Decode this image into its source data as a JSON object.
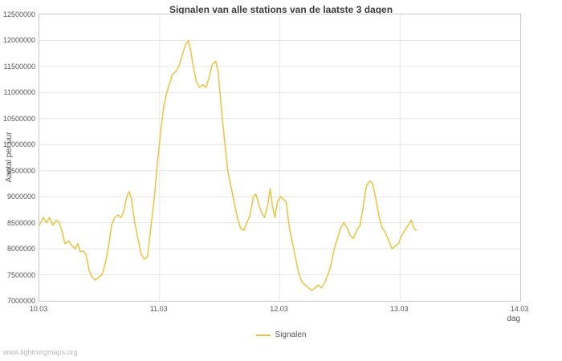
{
  "footer": "www.lightningmaps.org",
  "colors": {
    "line": "#edc240",
    "grid": "#e6e6e6",
    "border": "#c8c8c8",
    "tick_text": "#545454",
    "title_text": "#3c3c3c",
    "watermark": "#b9b9b9"
  },
  "chart_data": {
    "type": "line",
    "title": "Signalen van alle stations van de laatste 3 dagen",
    "xlabel": "dag",
    "ylabel": "Aantal per uur",
    "legend_label": "Signalen",
    "legend_position": "bottom-center",
    "grid": true,
    "xlim": [
      10.03,
      14.03
    ],
    "ylim": [
      7000000,
      12500000
    ],
    "x_ticks": [
      {
        "label": "10.03",
        "value": 10.03
      },
      {
        "label": "11.03",
        "value": 11.03
      },
      {
        "label": "12.03",
        "value": 12.03
      },
      {
        "label": "13.03",
        "value": 13.03
      },
      {
        "label": "14.03",
        "value": 14.03
      }
    ],
    "y_ticks": [
      7000000,
      7500000,
      8000000,
      8500000,
      9000000,
      9500000,
      10000000,
      10500000,
      11000000,
      11500000,
      12000000,
      12500000
    ],
    "series": [
      {
        "name": "Signalen",
        "color": "#edc240",
        "points": [
          [
            10.03,
            8450000
          ],
          [
            10.063,
            8600000
          ],
          [
            10.09,
            8500000
          ],
          [
            10.117,
            8600000
          ],
          [
            10.143,
            8450000
          ],
          [
            10.17,
            8550000
          ],
          [
            10.197,
            8500000
          ],
          [
            10.223,
            8300000
          ],
          [
            10.243,
            8100000
          ],
          [
            10.277,
            8150000
          ],
          [
            10.303,
            8050000
          ],
          [
            10.33,
            8000000
          ],
          [
            10.35,
            8100000
          ],
          [
            10.37,
            7950000
          ],
          [
            10.397,
            7950000
          ],
          [
            10.417,
            7900000
          ],
          [
            10.443,
            7600000
          ],
          [
            10.47,
            7450000
          ],
          [
            10.497,
            7400000
          ],
          [
            10.523,
            7450000
          ],
          [
            10.55,
            7500000
          ],
          [
            10.577,
            7700000
          ],
          [
            10.603,
            8000000
          ],
          [
            10.63,
            8450000
          ],
          [
            10.657,
            8600000
          ],
          [
            10.683,
            8650000
          ],
          [
            10.71,
            8600000
          ],
          [
            10.73,
            8700000
          ],
          [
            10.757,
            9000000
          ],
          [
            10.777,
            9100000
          ],
          [
            10.797,
            8950000
          ],
          [
            10.823,
            8500000
          ],
          [
            10.85,
            8200000
          ],
          [
            10.877,
            7900000
          ],
          [
            10.903,
            7800000
          ],
          [
            10.93,
            7850000
          ],
          [
            10.957,
            8400000
          ],
          [
            10.983,
            8900000
          ],
          [
            11.01,
            9600000
          ],
          [
            11.037,
            10200000
          ],
          [
            11.063,
            10700000
          ],
          [
            11.09,
            11000000
          ],
          [
            11.117,
            11200000
          ],
          [
            11.137,
            11350000
          ],
          [
            11.163,
            11400000
          ],
          [
            11.19,
            11500000
          ],
          [
            11.217,
            11700000
          ],
          [
            11.243,
            11900000
          ],
          [
            11.27,
            12000000
          ],
          [
            11.29,
            11800000
          ],
          [
            11.31,
            11500000
          ],
          [
            11.337,
            11200000
          ],
          [
            11.363,
            11100000
          ],
          [
            11.39,
            11150000
          ],
          [
            11.417,
            11100000
          ],
          [
            11.443,
            11300000
          ],
          [
            11.47,
            11550000
          ],
          [
            11.497,
            11600000
          ],
          [
            11.517,
            11400000
          ],
          [
            11.543,
            10700000
          ],
          [
            11.57,
            10100000
          ],
          [
            11.597,
            9500000
          ],
          [
            11.623,
            9200000
          ],
          [
            11.65,
            8900000
          ],
          [
            11.677,
            8600000
          ],
          [
            11.703,
            8400000
          ],
          [
            11.73,
            8350000
          ],
          [
            11.757,
            8500000
          ],
          [
            11.783,
            8650000
          ],
          [
            11.81,
            9000000
          ],
          [
            11.83,
            9050000
          ],
          [
            11.85,
            8900000
          ],
          [
            11.877,
            8700000
          ],
          [
            11.903,
            8600000
          ],
          [
            11.93,
            8850000
          ],
          [
            11.95,
            9150000
          ],
          [
            11.97,
            8800000
          ],
          [
            11.99,
            8600000
          ],
          [
            12.01,
            8900000
          ],
          [
            12.037,
            9000000
          ],
          [
            12.063,
            8950000
          ],
          [
            12.083,
            8900000
          ],
          [
            12.11,
            8400000
          ],
          [
            12.137,
            8100000
          ],
          [
            12.163,
            7800000
          ],
          [
            12.19,
            7500000
          ],
          [
            12.217,
            7350000
          ],
          [
            12.243,
            7300000
          ],
          [
            12.27,
            7250000
          ],
          [
            12.297,
            7200000
          ],
          [
            12.323,
            7250000
          ],
          [
            12.35,
            7300000
          ],
          [
            12.377,
            7250000
          ],
          [
            12.403,
            7350000
          ],
          [
            12.43,
            7500000
          ],
          [
            12.457,
            7700000
          ],
          [
            12.483,
            8000000
          ],
          [
            12.51,
            8200000
          ],
          [
            12.537,
            8400000
          ],
          [
            12.563,
            8500000
          ],
          [
            12.59,
            8400000
          ],
          [
            12.617,
            8250000
          ],
          [
            12.643,
            8200000
          ],
          [
            12.67,
            8350000
          ],
          [
            12.697,
            8450000
          ],
          [
            12.723,
            8800000
          ],
          [
            12.75,
            9200000
          ],
          [
            12.777,
            9300000
          ],
          [
            12.803,
            9250000
          ],
          [
            12.83,
            8950000
          ],
          [
            12.857,
            8600000
          ],
          [
            12.883,
            8400000
          ],
          [
            12.91,
            8300000
          ],
          [
            12.937,
            8150000
          ],
          [
            12.963,
            8000000
          ],
          [
            12.99,
            8050000
          ],
          [
            13.017,
            8100000
          ],
          [
            13.043,
            8250000
          ],
          [
            13.07,
            8350000
          ],
          [
            13.097,
            8450000
          ],
          [
            13.123,
            8550000
          ],
          [
            13.143,
            8400000
          ],
          [
            13.163,
            8350000
          ]
        ]
      }
    ]
  }
}
